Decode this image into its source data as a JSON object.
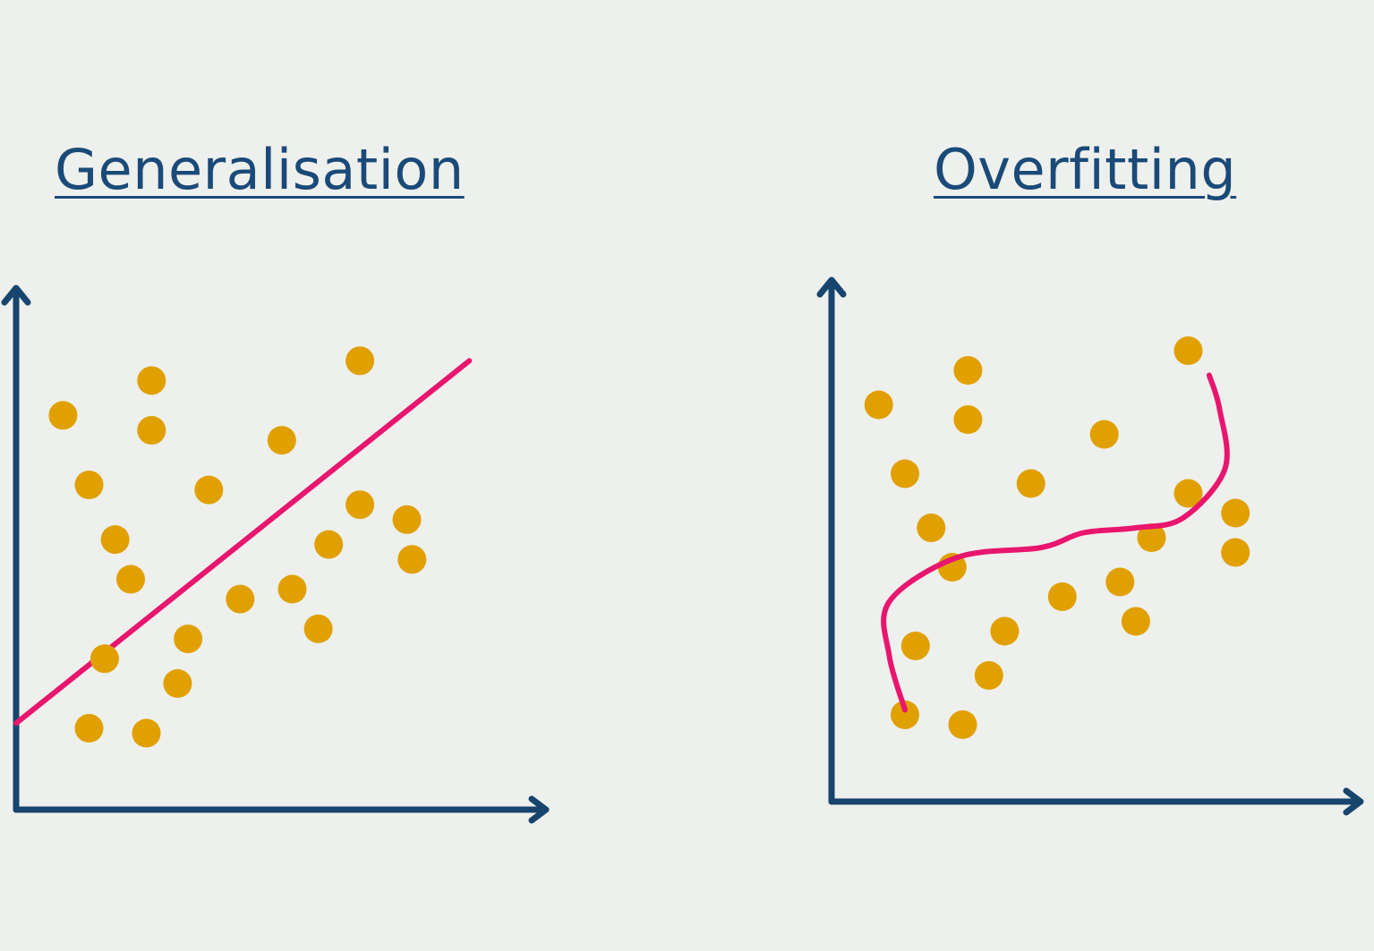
{
  "panels": {
    "left": {
      "title": "Generalisation"
    },
    "right": {
      "title": "Overfitting"
    }
  },
  "colors": {
    "background": "#eef0ed",
    "axis": "#17456e",
    "points": "#e0a000",
    "fit_line": "#e8166e",
    "title": "#1a4a78"
  },
  "chart_data": [
    {
      "type": "scatter",
      "title": "Generalisation",
      "xlabel": "",
      "ylabel": "",
      "xlim": [
        0,
        100
      ],
      "ylim": [
        0,
        100
      ],
      "grid": false,
      "axis_ticks": false,
      "points": [
        {
          "x": 9,
          "y": 74
        },
        {
          "x": 26,
          "y": 81
        },
        {
          "x": 26,
          "y": 71
        },
        {
          "x": 14,
          "y": 60
        },
        {
          "x": 19,
          "y": 49
        },
        {
          "x": 22,
          "y": 41
        },
        {
          "x": 37,
          "y": 59
        },
        {
          "x": 51,
          "y": 69
        },
        {
          "x": 66,
          "y": 85
        },
        {
          "x": 66,
          "y": 56
        },
        {
          "x": 75,
          "y": 53
        },
        {
          "x": 76,
          "y": 45
        },
        {
          "x": 60,
          "y": 48
        },
        {
          "x": 53,
          "y": 39
        },
        {
          "x": 58,
          "y": 31
        },
        {
          "x": 43,
          "y": 37
        },
        {
          "x": 33,
          "y": 29
        },
        {
          "x": 17,
          "y": 25
        },
        {
          "x": 31,
          "y": 20
        },
        {
          "x": 14,
          "y": 11
        },
        {
          "x": 25,
          "y": 10
        }
      ],
      "fit_line": {
        "shape": "linear",
        "points": [
          {
            "x": 0,
            "y": 12
          },
          {
            "x": 87,
            "y": 85
          }
        ]
      }
    },
    {
      "type": "scatter",
      "title": "Overfitting",
      "xlabel": "",
      "ylabel": "",
      "xlim": [
        0,
        100
      ],
      "ylim": [
        0,
        100
      ],
      "grid": false,
      "axis_ticks": false,
      "points": [
        {
          "x": 9,
          "y": 75
        },
        {
          "x": 26,
          "y": 82
        },
        {
          "x": 26,
          "y": 72
        },
        {
          "x": 14,
          "y": 61
        },
        {
          "x": 19,
          "y": 50
        },
        {
          "x": 38,
          "y": 59
        },
        {
          "x": 52,
          "y": 69
        },
        {
          "x": 68,
          "y": 86
        },
        {
          "x": 68,
          "y": 57
        },
        {
          "x": 77,
          "y": 53
        },
        {
          "x": 77,
          "y": 45
        },
        {
          "x": 61,
          "y": 48
        },
        {
          "x": 23,
          "y": 42
        },
        {
          "x": 44,
          "y": 36
        },
        {
          "x": 55,
          "y": 39
        },
        {
          "x": 58,
          "y": 31
        },
        {
          "x": 33,
          "y": 29
        },
        {
          "x": 16,
          "y": 26
        },
        {
          "x": 30,
          "y": 20
        },
        {
          "x": 14,
          "y": 12
        },
        {
          "x": 25,
          "y": 10
        }
      ],
      "fit_line": {
        "shape": "curve",
        "points": [
          {
            "x": 14,
            "y": 13
          },
          {
            "x": 11,
            "y": 24
          },
          {
            "x": 11,
            "y": 35
          },
          {
            "x": 24,
            "y": 44
          },
          {
            "x": 40,
            "y": 46
          },
          {
            "x": 48,
            "y": 49
          },
          {
            "x": 58,
            "y": 50
          },
          {
            "x": 67,
            "y": 52
          },
          {
            "x": 75,
            "y": 62
          },
          {
            "x": 74,
            "y": 74
          },
          {
            "x": 72,
            "y": 81
          }
        ]
      }
    }
  ]
}
